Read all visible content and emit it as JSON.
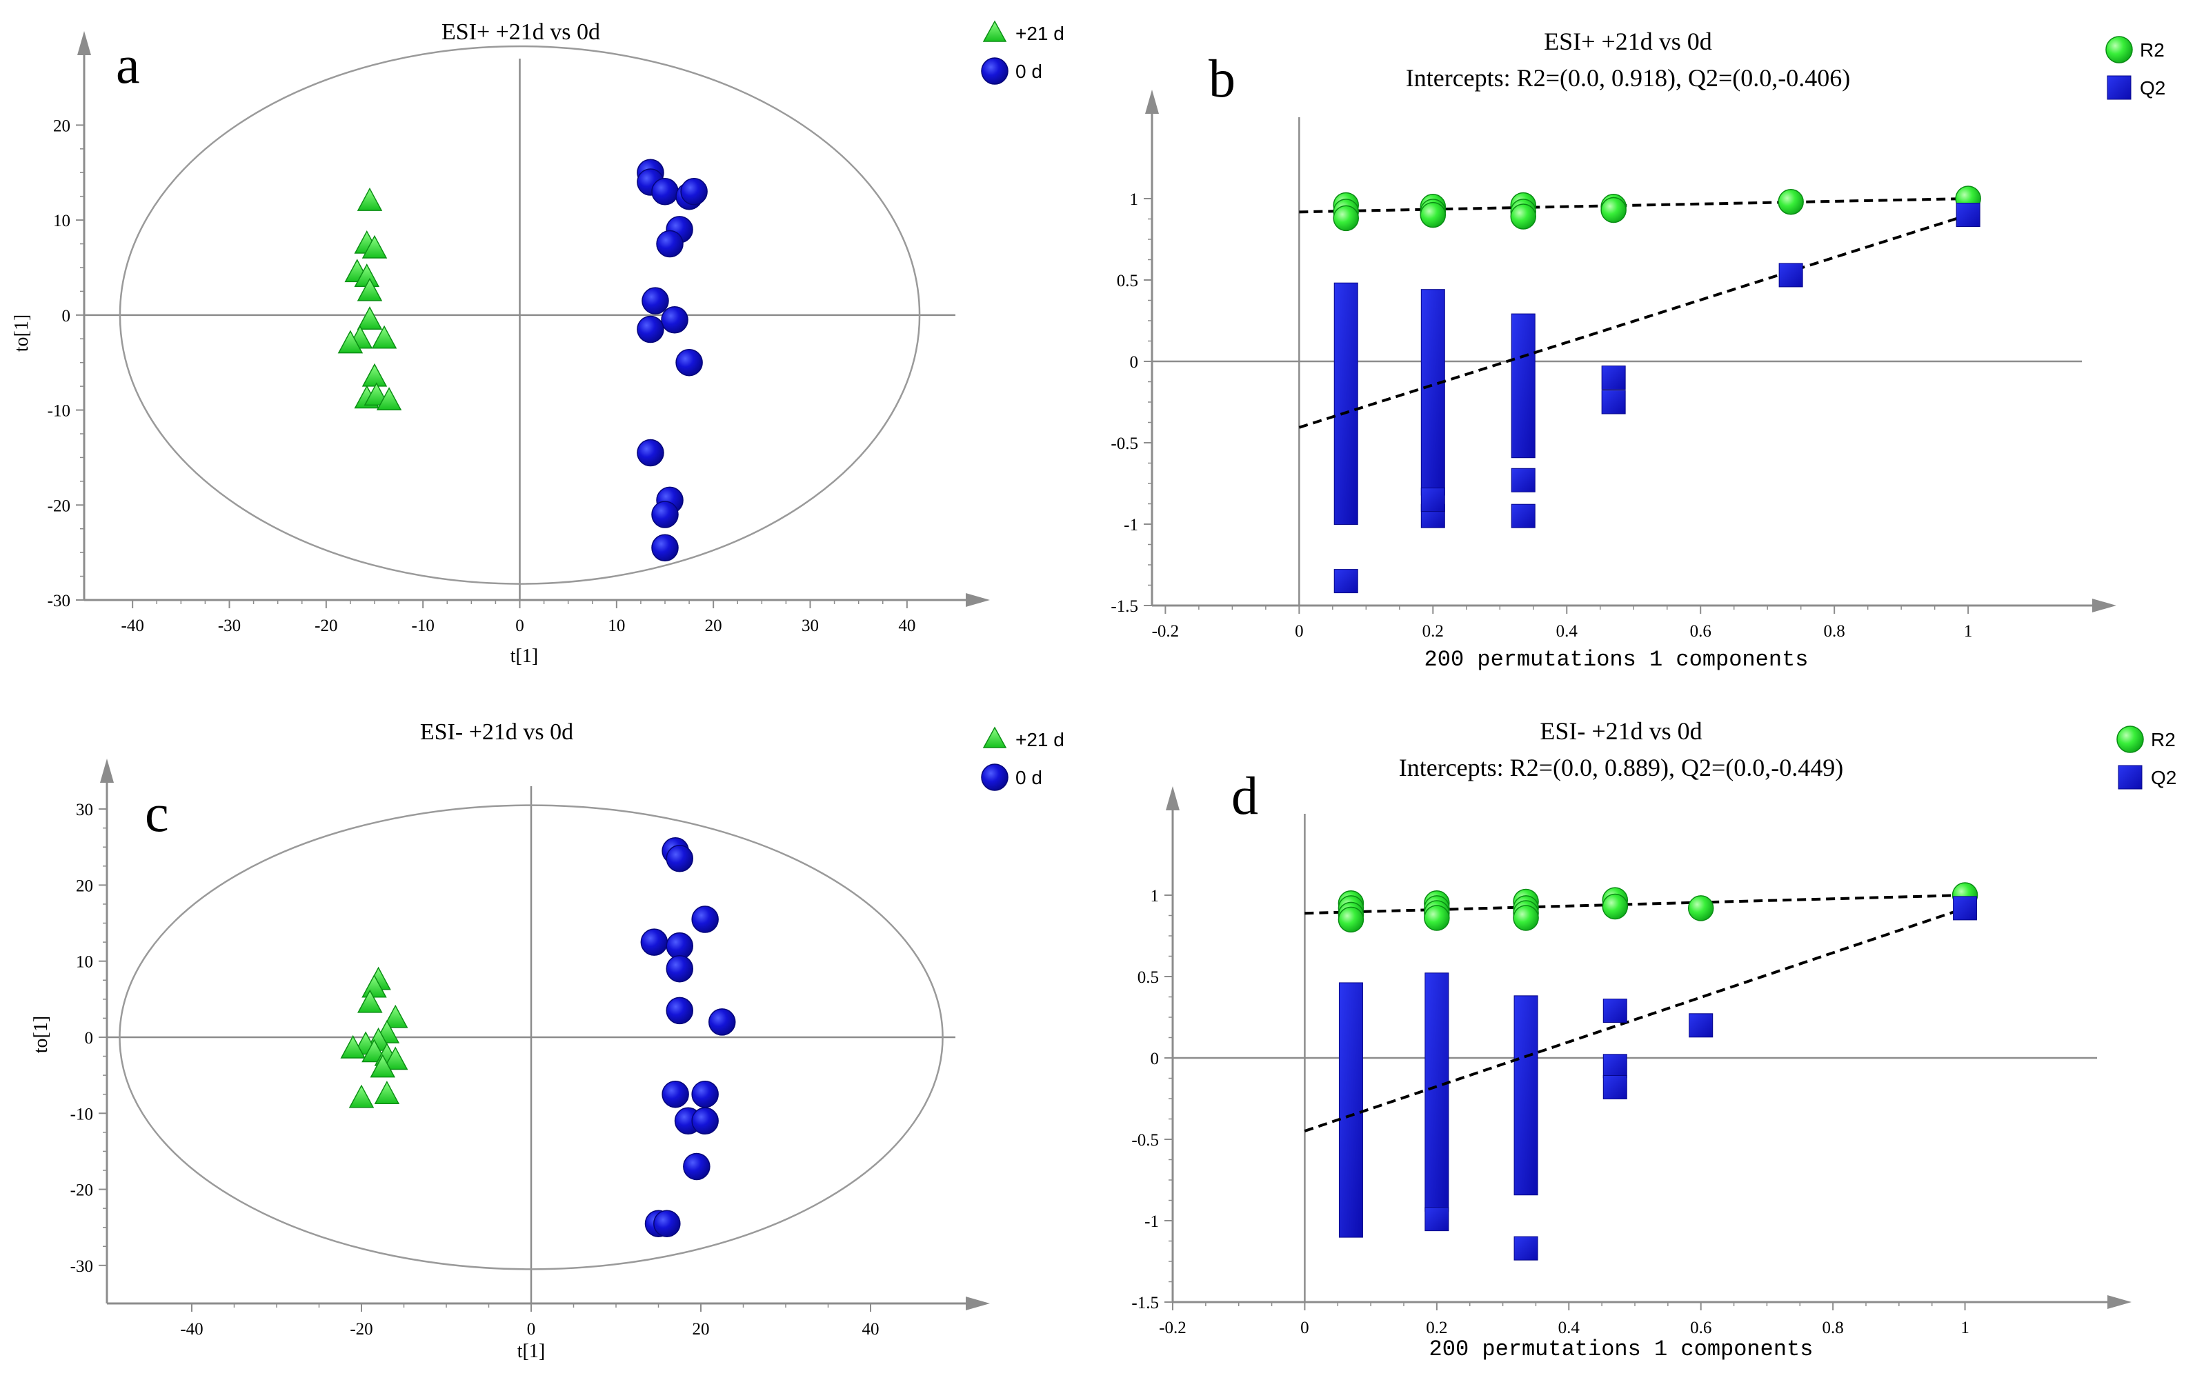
{
  "chart_data": [
    {
      "panel": "a",
      "type": "scatter",
      "title": "ESI+ +21d vs 0d",
      "xlabel": "t[1]",
      "ylabel": "to[1]",
      "xlim": [
        -45,
        45
      ],
      "ylim": [
        -30,
        27
      ],
      "xticks": [
        -40,
        -30,
        -20,
        -10,
        0,
        10,
        20,
        30,
        40
      ],
      "yticks": [
        -30,
        -20,
        -10,
        0,
        10,
        20
      ],
      "ellipse": {
        "rx": 41.3,
        "ry": 28.3
      },
      "legend": [
        {
          "label": "+21 d",
          "marker": "triangle",
          "color": "#22ee22"
        },
        {
          "label": "0 d",
          "marker": "circle",
          "color": "#1515d4"
        }
      ],
      "series": [
        {
          "name": "+21 d",
          "marker": "triangle",
          "color": "#22ee22",
          "points": [
            [
              -15.5,
              12
            ],
            [
              -15.8,
              7.5
            ],
            [
              -15,
              7
            ],
            [
              -16.8,
              4.5
            ],
            [
              -15.8,
              4
            ],
            [
              -15.5,
              2.5
            ],
            [
              -15.5,
              -0.5
            ],
            [
              -16.5,
              -2.5
            ],
            [
              -17.5,
              -3
            ],
            [
              -14,
              -2.5
            ],
            [
              -15,
              -6.5
            ],
            [
              -15.8,
              -8.8
            ],
            [
              -14.8,
              -8.5
            ],
            [
              -13.5,
              -9
            ]
          ]
        },
        {
          "name": "0 d",
          "marker": "circle",
          "color": "#1515d4",
          "points": [
            [
              13.5,
              15
            ],
            [
              13.5,
              14
            ],
            [
              15,
              13
            ],
            [
              17.5,
              12.5
            ],
            [
              18,
              13
            ],
            [
              16.5,
              9
            ],
            [
              15.5,
              7.5
            ],
            [
              14,
              1.5
            ],
            [
              16,
              -0.5
            ],
            [
              13.5,
              -1.5
            ],
            [
              17.5,
              -5
            ],
            [
              13.5,
              -14.5
            ],
            [
              15.5,
              -19.5
            ],
            [
              15,
              -21
            ],
            [
              15,
              -24.5
            ]
          ]
        }
      ]
    },
    {
      "panel": "b",
      "type": "scatter",
      "title": "ESI+ +21d vs 0d",
      "subtitle": "Intercepts: R2=(0.0, 0.918), Q2=(0.0,-0.406)",
      "xlabel": "200 permutations 1 components",
      "xlim": [
        -0.22,
        1.17
      ],
      "ylim": [
        -1.5,
        1.5
      ],
      "xticks": [
        -0.2,
        0,
        0.2,
        0.4,
        0.6,
        0.8,
        1
      ],
      "yticks": [
        -1.5,
        -1,
        -0.5,
        0,
        0.5,
        1
      ],
      "intercepts": {
        "R2": [
          0.0,
          0.918
        ],
        "Q2": [
          0.0,
          -0.406
        ]
      },
      "legend": [
        {
          "label": "R2",
          "marker": "circle",
          "color": "#22ee22"
        },
        {
          "label": "Q2",
          "marker": "square",
          "color": "#1515d4"
        }
      ],
      "series": [
        {
          "name": "R2",
          "marker": "circle",
          "color": "#22ee22",
          "points": [
            [
              0.07,
              0.96
            ],
            [
              0.07,
              0.92
            ],
            [
              0.07,
              0.88
            ],
            [
              0.2,
              0.95
            ],
            [
              0.2,
              0.92
            ],
            [
              0.2,
              0.9
            ],
            [
              0.335,
              0.96
            ],
            [
              0.335,
              0.92
            ],
            [
              0.335,
              0.89
            ],
            [
              0.47,
              0.95
            ],
            [
              0.47,
              0.93
            ],
            [
              0.735,
              0.98
            ],
            [
              1.0,
              1.0
            ]
          ]
        },
        {
          "name": "Q2",
          "marker": "square",
          "color": "#1515d4",
          "points": [
            [
              0.07,
              -1.35
            ],
            [
              0.2,
              -0.95
            ],
            [
              0.2,
              -0.85
            ],
            [
              0.335,
              -0.95
            ],
            [
              0.335,
              -0.73
            ],
            [
              0.47,
              -0.25
            ],
            [
              0.47,
              -0.1
            ],
            [
              0.735,
              0.53
            ],
            [
              1.0,
              0.9
            ]
          ]
        }
      ],
      "q2_bars": [
        {
          "x": 0.07,
          "range": [
            -0.93,
            0.41
          ]
        },
        {
          "x": 0.2,
          "range": [
            -0.75,
            0.37
          ]
        },
        {
          "x": 0.335,
          "range": [
            -0.52,
            0.22
          ]
        }
      ],
      "fit_lines": [
        {
          "name": "R2",
          "from": [
            0,
            0.918
          ],
          "to": [
            1,
            1.0
          ]
        },
        {
          "name": "Q2",
          "from": [
            0,
            -0.406
          ],
          "to": [
            1,
            0.9
          ]
        }
      ]
    },
    {
      "panel": "c",
      "type": "scatter",
      "title": "ESI- +21d vs 0d",
      "xlabel": "t[1]",
      "ylabel": "to[1]",
      "xlim": [
        -50,
        50
      ],
      "ylim": [
        -35,
        33
      ],
      "xticks": [
        -40,
        -20,
        0,
        20,
        40
      ],
      "yticks": [
        -30,
        -20,
        -10,
        0,
        10,
        20,
        30
      ],
      "ellipse": {
        "rx": 48.5,
        "ry": 30.5
      },
      "legend": [
        {
          "label": "+21 d",
          "marker": "triangle",
          "color": "#22ee22"
        },
        {
          "label": "0 d",
          "marker": "circle",
          "color": "#1515d4"
        }
      ],
      "series": [
        {
          "name": "+21 d",
          "marker": "triangle",
          "color": "#22ee22",
          "points": [
            [
              -18,
              7.5
            ],
            [
              -18.5,
              6.5
            ],
            [
              -19,
              4.5
            ],
            [
              -16,
              2.5
            ],
            [
              -17,
              0.5
            ],
            [
              -18,
              -0.5
            ],
            [
              -19.5,
              -1
            ],
            [
              -21,
              -1.5
            ],
            [
              -18.5,
              -2
            ],
            [
              -17,
              -2.5
            ],
            [
              -16,
              -3
            ],
            [
              -17.5,
              -4
            ],
            [
              -20,
              -8
            ],
            [
              -17,
              -7.5
            ]
          ]
        },
        {
          "name": "0 d",
          "marker": "circle",
          "color": "#1515d4",
          "points": [
            [
              17,
              24.5
            ],
            [
              17.5,
              23.5
            ],
            [
              20.5,
              15.5
            ],
            [
              14.5,
              12.5
            ],
            [
              17.5,
              12
            ],
            [
              17.5,
              9
            ],
            [
              17.5,
              3.5
            ],
            [
              22.5,
              2
            ],
            [
              17,
              -7.5
            ],
            [
              20.5,
              -7.5
            ],
            [
              18.5,
              -11
            ],
            [
              20.5,
              -11
            ],
            [
              19.5,
              -17
            ],
            [
              15,
              -24.5
            ],
            [
              16,
              -24.5
            ]
          ]
        }
      ]
    },
    {
      "panel": "d",
      "type": "scatter",
      "title": "ESI- +21d vs 0d",
      "subtitle": "Intercepts: R2=(0.0, 0.889), Q2=(0.0,-0.449)",
      "xlabel": "200 permutations 1 components",
      "xlim": [
        -0.2,
        1.2
      ],
      "ylim": [
        -1.5,
        1.5
      ],
      "xticks": [
        -0.2,
        0,
        0.2,
        0.4,
        0.6,
        0.8,
        1
      ],
      "yticks": [
        -1.5,
        -1,
        -0.5,
        0,
        0.5,
        1
      ],
      "intercepts": {
        "R2": [
          0.0,
          0.889
        ],
        "Q2": [
          0.0,
          -0.449
        ]
      },
      "legend": [
        {
          "label": "R2",
          "marker": "circle",
          "color": "#22ee22"
        },
        {
          "label": "Q2",
          "marker": "square",
          "color": "#1515d4"
        }
      ],
      "series": [
        {
          "name": "R2",
          "marker": "circle",
          "color": "#22ee22",
          "points": [
            [
              0.07,
              0.95
            ],
            [
              0.07,
              0.92
            ],
            [
              0.07,
              0.88
            ],
            [
              0.07,
              0.85
            ],
            [
              0.2,
              0.95
            ],
            [
              0.2,
              0.92
            ],
            [
              0.2,
              0.89
            ],
            [
              0.2,
              0.86
            ],
            [
              0.335,
              0.96
            ],
            [
              0.335,
              0.92
            ],
            [
              0.335,
              0.89
            ],
            [
              0.335,
              0.86
            ],
            [
              0.47,
              0.97
            ],
            [
              0.47,
              0.93
            ],
            [
              0.6,
              0.92
            ],
            [
              1.0,
              1.0
            ]
          ]
        },
        {
          "name": "Q2",
          "marker": "square",
          "color": "#1515d4",
          "points": [
            [
              0.2,
              -0.99
            ],
            [
              0.335,
              -1.17
            ],
            [
              0.47,
              0.29
            ],
            [
              0.47,
              -0.05
            ],
            [
              0.47,
              -0.18
            ],
            [
              0.6,
              0.2
            ],
            [
              1.0,
              0.92
            ]
          ]
        }
      ],
      "q2_bars": [
        {
          "x": 0.07,
          "range": [
            -1.03,
            0.39
          ]
        },
        {
          "x": 0.2,
          "range": [
            -0.87,
            0.45
          ]
        },
        {
          "x": 0.335,
          "range": [
            -0.77,
            0.31
          ]
        }
      ],
      "fit_lines": [
        {
          "name": "R2",
          "from": [
            0,
            0.889
          ],
          "to": [
            1,
            1.0
          ]
        },
        {
          "name": "Q2",
          "from": [
            0,
            -0.449
          ],
          "to": [
            1,
            0.92
          ]
        }
      ]
    }
  ]
}
